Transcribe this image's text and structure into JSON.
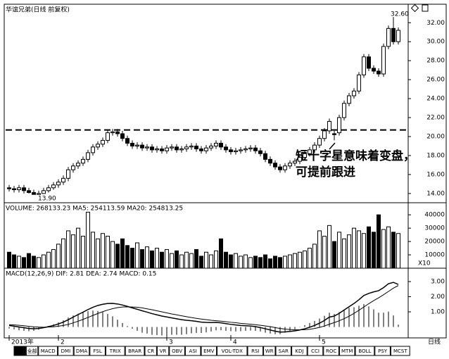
{
  "chart_data": {
    "type": "candlestick",
    "title": "华谊兄弟(日线 前复权)",
    "ylim": [
      13.1,
      33.8
    ],
    "yticks": [
      {
        "value": 14,
        "label": "14.00"
      },
      {
        "value": 16,
        "label": "16.00"
      },
      {
        "value": 18,
        "label": "18.00"
      },
      {
        "value": 20,
        "label": "20.00"
      },
      {
        "value": 22,
        "label": "22.00"
      },
      {
        "value": 24,
        "label": "24.00"
      },
      {
        "value": 26,
        "label": "26.00"
      },
      {
        "value": 28,
        "label": "28.00"
      },
      {
        "value": 30,
        "label": "30.00"
      },
      {
        "value": 32,
        "label": "32.00"
      }
    ],
    "open": [
      14.6,
      14.5,
      14.4,
      14.6,
      14.3,
      14.1,
      13.9,
      14.0,
      14.3,
      14.6,
      14.9,
      15.2,
      15.6,
      16.5,
      16.9,
      17.2,
      17.6,
      18.3,
      18.9,
      19.2,
      19.6,
      20.4,
      20.5,
      20.3,
      19.8,
      19.3,
      19.0,
      19.1,
      18.8,
      18.9,
      18.6,
      18.7,
      18.5,
      18.8,
      18.9,
      18.6,
      18.7,
      18.9,
      19.0,
      18.7,
      18.5,
      18.8,
      19.0,
      19.3,
      18.9,
      18.6,
      18.4,
      18.5,
      18.6,
      18.7,
      18.8,
      18.5,
      18.2,
      17.6,
      17.2,
      16.8,
      16.5,
      16.9,
      17.2,
      17.4,
      17.8,
      18.2,
      18.6,
      19.1,
      19.8,
      20.6,
      20.3,
      20.4,
      22.0,
      23.5,
      24.3,
      24.8,
      26.5,
      28.4,
      27.2,
      26.9,
      26.6,
      29.5,
      31.4,
      30.0
    ],
    "high": [
      14.9,
      14.8,
      14.9,
      14.9,
      14.6,
      14.4,
      14.3,
      14.6,
      14.9,
      15.2,
      15.5,
      15.9,
      16.8,
      17.2,
      17.5,
      17.9,
      18.6,
      19.2,
      19.5,
      19.9,
      20.7,
      20.8,
      20.8,
      20.6,
      20.1,
      19.6,
      19.4,
      19.4,
      19.2,
      19.2,
      19.0,
      19.0,
      19.1,
      19.2,
      19.2,
      19.0,
      19.2,
      19.3,
      19.3,
      19.0,
      19.1,
      19.3,
      19.6,
      19.6,
      19.2,
      18.9,
      18.8,
      18.9,
      19.0,
      19.1,
      19.1,
      18.8,
      18.5,
      17.9,
      17.5,
      17.1,
      17.2,
      17.5,
      17.7,
      18.1,
      18.5,
      18.9,
      19.4,
      20.1,
      20.9,
      21.9,
      20.6,
      22.3,
      23.8,
      24.6,
      25.1,
      26.8,
      28.7,
      28.7,
      27.5,
      27.2,
      29.8,
      31.7,
      32.6,
      31.5
    ],
    "low": [
      14.2,
      14.1,
      14.1,
      14.0,
      14.0,
      13.9,
      13.9,
      13.95,
      14.1,
      14.4,
      14.6,
      14.9,
      15.3,
      16.2,
      16.6,
      16.9,
      17.3,
      18.0,
      18.6,
      18.9,
      19.3,
      20.1,
      20.0,
      19.5,
      19.0,
      18.7,
      18.7,
      18.5,
      18.5,
      18.3,
      18.3,
      18.2,
      18.2,
      18.5,
      18.3,
      18.3,
      18.4,
      18.6,
      18.4,
      18.2,
      18.2,
      18.5,
      18.7,
      18.6,
      18.3,
      18.1,
      18.1,
      18.2,
      18.3,
      18.4,
      18.2,
      17.9,
      17.3,
      16.9,
      16.5,
      16.2,
      16.2,
      16.6,
      16.9,
      17.1,
      17.5,
      17.9,
      18.3,
      18.8,
      19.5,
      20.3,
      19.6,
      20.1,
      21.7,
      23.2,
      24.0,
      24.5,
      26.2,
      26.9,
      26.6,
      26.3,
      26.3,
      29.2,
      29.7,
      29.7
    ],
    "close": [
      14.5,
      14.4,
      14.6,
      14.3,
      14.1,
      13.9,
      14.0,
      14.3,
      14.6,
      14.9,
      15.2,
      15.6,
      16.5,
      16.9,
      17.2,
      17.6,
      18.3,
      18.9,
      19.2,
      19.6,
      20.4,
      20.5,
      20.3,
      19.8,
      19.3,
      19.0,
      19.1,
      18.8,
      18.9,
      18.6,
      18.7,
      18.5,
      18.8,
      18.9,
      18.6,
      18.7,
      18.9,
      19.0,
      18.7,
      18.5,
      18.8,
      19.0,
      19.3,
      18.9,
      18.6,
      18.4,
      18.5,
      18.6,
      18.7,
      18.8,
      18.5,
      18.2,
      17.6,
      17.2,
      16.8,
      16.5,
      16.9,
      17.2,
      17.4,
      17.8,
      18.2,
      18.6,
      19.1,
      19.8,
      20.6,
      21.6,
      20.2,
      22.0,
      23.5,
      24.3,
      24.8,
      26.5,
      28.4,
      27.2,
      26.9,
      26.6,
      29.5,
      31.4,
      30.0,
      31.2
    ],
    "ref_line": 20.7,
    "high_label": "32.60",
    "low_label": "13.90",
    "annotation": [
      "短十字星意味着变盘，",
      "可提前跟进"
    ],
    "x_ticks": [
      {
        "value": 0,
        "label": "2013年"
      },
      {
        "value": 10,
        "label": "2"
      },
      {
        "value": 32,
        "label": "3"
      },
      {
        "value": 45,
        "label": "4"
      },
      {
        "value": 63,
        "label": "5"
      }
    ],
    "volume": {
      "title": "VOLUME: 268133.23  MA5: 254113.59  MA20: 254813.25",
      "unit_label": "X10",
      "ylim": [
        0,
        48000
      ],
      "yticks": [
        10000,
        20000,
        30000,
        40000
      ],
      "values": [
        12000,
        10000,
        9000,
        8000,
        11000,
        9000,
        8000,
        10000,
        12000,
        14000,
        18000,
        22000,
        28000,
        25000,
        30000,
        24000,
        42000,
        27000,
        22000,
        26000,
        24000,
        20000,
        18000,
        22000,
        17000,
        15000,
        19000,
        14000,
        16000,
        13000,
        15000,
        12000,
        14000,
        11000,
        13000,
        10000,
        12000,
        11000,
        14000,
        9000,
        12000,
        10000,
        13000,
        22000,
        12000,
        10000,
        11000,
        9000,
        10000,
        8000,
        9000,
        8000,
        10000,
        7000,
        9000,
        8000,
        9000,
        10000,
        11000,
        12000,
        13000,
        15000,
        18000,
        28000,
        24000,
        32000,
        20000,
        27000,
        22000,
        25000,
        30000,
        28000,
        26000,
        31000,
        27000,
        40000,
        29000,
        31000,
        27000,
        26000
      ]
    },
    "macd": {
      "title": "MACD(12,26,9)  DIF: 2.81  DEA: 2.74  MACD: 0.15",
      "ylim": [
        -0.63,
        3.84
      ],
      "yticks": [
        {
          "value": 1,
          "label": "1.00"
        },
        {
          "value": 2,
          "label": "2.00"
        },
        {
          "value": 3,
          "label": "3.00"
        }
      ],
      "dif": [
        0.1,
        0.05,
        0.0,
        -0.05,
        -0.1,
        -0.12,
        -0.1,
        -0.05,
        0.02,
        0.1,
        0.2,
        0.32,
        0.48,
        0.65,
        0.82,
        0.98,
        1.15,
        1.3,
        1.42,
        1.5,
        1.55,
        1.56,
        1.52,
        1.45,
        1.36,
        1.26,
        1.17,
        1.07,
        0.98,
        0.88,
        0.8,
        0.72,
        0.66,
        0.6,
        0.54,
        0.48,
        0.44,
        0.41,
        0.37,
        0.32,
        0.3,
        0.29,
        0.3,
        0.27,
        0.22,
        0.17,
        0.13,
        0.1,
        0.08,
        0.06,
        0.02,
        -0.04,
        -0.12,
        -0.2,
        -0.28,
        -0.34,
        -0.33,
        -0.3,
        -0.26,
        -0.2,
        -0.12,
        -0.02,
        0.1,
        0.25,
        0.43,
        0.65,
        0.72,
        0.9,
        1.12,
        1.34,
        1.55,
        1.8,
        2.08,
        2.22,
        2.32,
        2.4,
        2.6,
        2.86,
        2.95,
        2.81
      ],
      "dea": [
        0.15,
        0.13,
        0.11,
        0.08,
        0.04,
        0.01,
        -0.01,
        -0.02,
        -0.01,
        0.01,
        0.05,
        0.1,
        0.17,
        0.27,
        0.38,
        0.5,
        0.63,
        0.76,
        0.89,
        1.01,
        1.12,
        1.21,
        1.28,
        1.32,
        1.33,
        1.32,
        1.3,
        1.26,
        1.2,
        1.14,
        1.07,
        1.0,
        0.93,
        0.86,
        0.8,
        0.74,
        0.68,
        0.62,
        0.57,
        0.52,
        0.48,
        0.44,
        0.41,
        0.38,
        0.35,
        0.31,
        0.28,
        0.24,
        0.21,
        0.18,
        0.15,
        0.11,
        0.07,
        0.02,
        -0.04,
        -0.1,
        -0.14,
        -0.17,
        -0.19,
        -0.19,
        -0.18,
        -0.15,
        -0.1,
        -0.03,
        0.06,
        0.18,
        0.29,
        0.41,
        0.55,
        0.71,
        0.9,
        1.1,
        1.32,
        1.54,
        1.74,
        1.93,
        2.13,
        2.35,
        2.57,
        2.74
      ],
      "values": [
        -0.1,
        -0.16,
        -0.22,
        -0.26,
        -0.28,
        -0.26,
        -0.18,
        -0.06,
        0.06,
        0.18,
        0.3,
        0.44,
        0.62,
        0.76,
        0.88,
        0.96,
        1.04,
        1.08,
        1.06,
        0.98,
        0.86,
        0.7,
        0.48,
        0.26,
        0.06,
        -0.12,
        -0.26,
        -0.38,
        -0.44,
        -0.52,
        -0.54,
        -0.56,
        -0.54,
        -0.52,
        -0.52,
        -0.52,
        -0.48,
        -0.42,
        -0.4,
        -0.4,
        -0.36,
        -0.3,
        -0.22,
        -0.22,
        -0.26,
        -0.28,
        -0.3,
        -0.28,
        -0.26,
        -0.24,
        -0.26,
        -0.3,
        -0.38,
        -0.44,
        -0.48,
        -0.48,
        -0.38,
        -0.26,
        -0.14,
        -0.02,
        0.12,
        0.26,
        0.4,
        0.56,
        0.74,
        0.94,
        0.86,
        0.98,
        1.14,
        1.26,
        1.3,
        1.4,
        1.52,
        1.36,
        1.16,
        0.94,
        0.94,
        1.02,
        0.76,
        0.15
      ]
    }
  },
  "period_label": "日线",
  "tabs": [
    "指标",
    "全部",
    "MACD",
    "DMI",
    "DMA",
    "FSL",
    "TRIX",
    "BRAR",
    "CR",
    "VR",
    "OBV",
    "ASI",
    "EMV",
    "VOL-TDX",
    "RSI",
    "WR",
    "SAR",
    "KDJ",
    "CCI",
    "ROC",
    "MTM",
    "BOLL",
    "PSY",
    "MCST"
  ]
}
